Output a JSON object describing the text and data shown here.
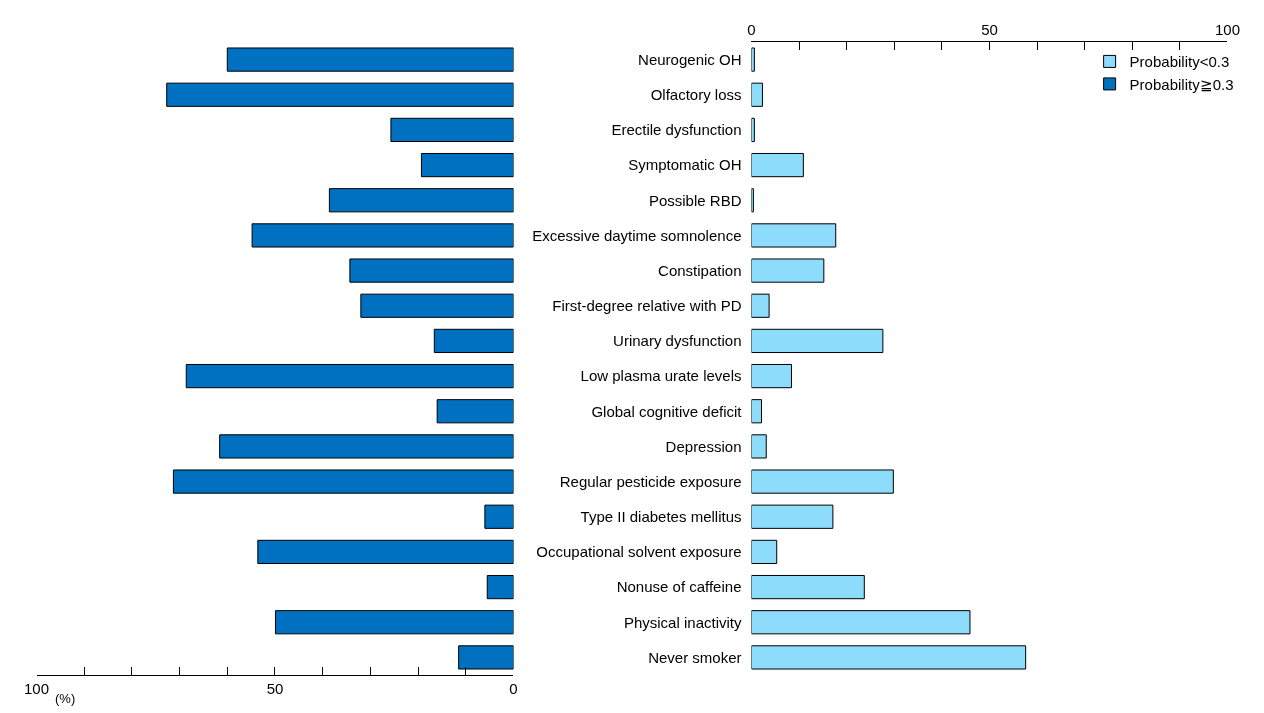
{
  "chart_data": [
    {
      "type": "bar",
      "orientation": "horizontal",
      "xlabel": "(%)",
      "categories": [
        "Neurogenic OH",
        "Olfactory loss",
        "Erectile dysfunction",
        "Symptomatic OH",
        "Possible RBD",
        "Excessive daytime somnolence",
        "Constipation",
        "First-degree relative with PD",
        "Urinary dysfunction",
        "Low plasma urate levels",
        "Global cognitive deficit",
        "Depression",
        "Regular pesticide exposure",
        "Type II diabetes mellitus",
        "Occupational solvent exposure",
        "Nonuse of caffeine",
        "Physical inactivity",
        "Never smoker"
      ],
      "series": [
        {
          "name": "Probability≧0.3",
          "color": "#0070c0",
          "values": [
            60,
            72.7,
            25.7,
            19.3,
            38.6,
            54.8,
            34.3,
            32,
            16.6,
            68.6,
            16,
            61.6,
            71.3,
            6,
            53.6,
            5.5,
            49.9,
            11.5
          ]
        }
      ],
      "xlim": [
        100,
        0
      ],
      "xticks": [
        100,
        {
          "value": 90,
          "label": null
        },
        {
          "value": 80,
          "label": null
        },
        {
          "value": 70,
          "label": null
        },
        {
          "value": 60,
          "label": null
        },
        50,
        {
          "value": 40,
          "label": null
        },
        {
          "value": 30,
          "label": null
        },
        {
          "value": 20,
          "label": null
        },
        {
          "value": 10,
          "label": null
        },
        0
      ]
    },
    {
      "type": "bar",
      "orientation": "horizontal",
      "legend": "top right",
      "tick_labels": "x",
      "categories": [
        null,
        null,
        null,
        null,
        null,
        null,
        null,
        null,
        null,
        null,
        null,
        null,
        null,
        null,
        null,
        null,
        null,
        null
      ],
      "series": [
        {
          "name": "Probability<0.3",
          "color": "#8ddcfc",
          "axis": "x2",
          "values": [
            0.6,
            2.3,
            0.6,
            10.9,
            0.4,
            17.7,
            15.2,
            3.7,
            27.6,
            8.4,
            2.1,
            3.1,
            29.8,
            17.1,
            5.3,
            23.7,
            45.9,
            57.6
          ]
        }
      ],
      "x2lim": [
        0,
        100
      ],
      "x2ticks": [
        0,
        {
          "value": 10,
          "label": null
        },
        {
          "value": 20,
          "label": null
        },
        {
          "value": 30,
          "label": null
        },
        {
          "value": 40,
          "label": null
        },
        50,
        {
          "value": 60,
          "label": null
        },
        {
          "value": 70,
          "label": null
        },
        {
          "value": 80,
          "label": null
        },
        {
          "value": 90,
          "label": null
        },
        100
      ]
    }
  ]
}
